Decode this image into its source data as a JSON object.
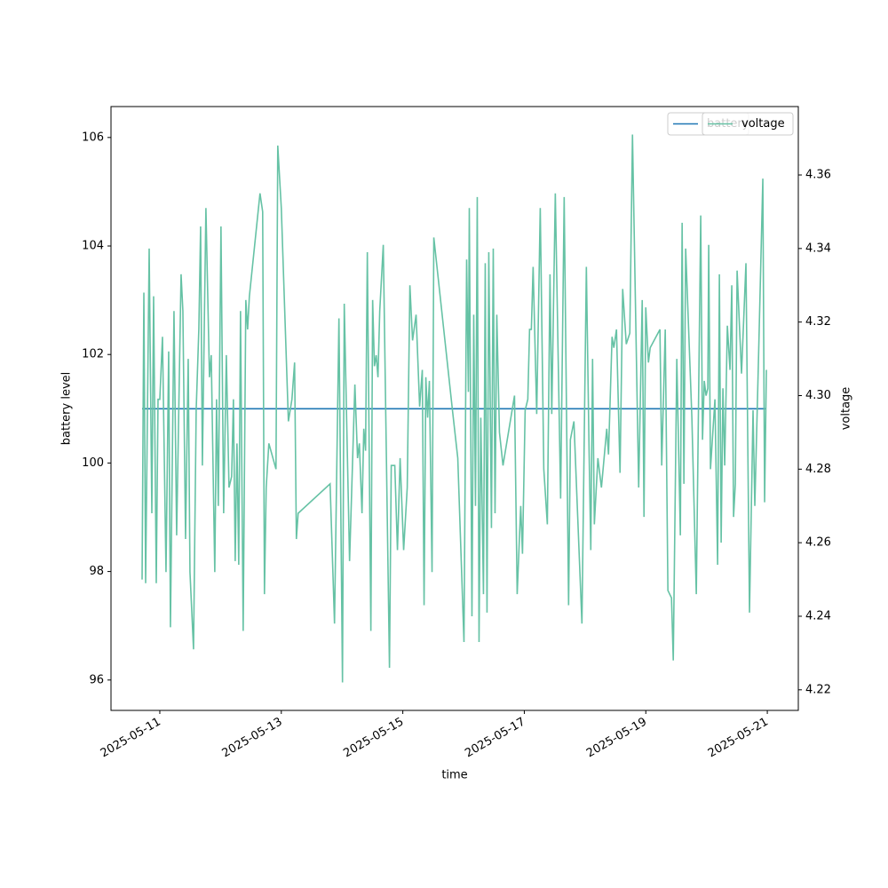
{
  "chart_data": {
    "type": "line",
    "xlabel": "time",
    "ylabel": "battery level",
    "y2label": "voltage",
    "xlim": [
      "2025-05-10T04:43",
      "2025-05-21T12:15"
    ],
    "xticks": [
      "2025-05-11",
      "2025-05-13",
      "2025-05-15",
      "2025-05-17",
      "2025-05-19",
      "2025-05-21"
    ],
    "ylim": [
      95.44,
      106.57
    ],
    "yticks": [
      96,
      98,
      100,
      102,
      104,
      106
    ],
    "y2lim": [
      4.2144,
      4.3786
    ],
    "y2ticks": [
      4.22,
      4.24,
      4.26,
      4.28,
      {
        "value": 4.3,
        "label": "4.30"
      },
      4.32,
      4.34,
      4.36
    ],
    "legend": "upper right",
    "series": [
      {
        "name": "battery",
        "color": "#1f77b4",
        "axis": "y",
        "x": [
          "2025-05-10T17:00",
          "2025-05-20T23:38"
        ],
        "values": [
          101,
          101
        ]
      },
      {
        "name": "voltage",
        "color": "#66c2a5",
        "axis": "y2",
        "x": [
          "2025-05-10T17:00",
          "2025-05-10T17:42",
          "2025-05-10T18:24",
          "2025-05-10T19:48",
          "2025-05-10T20:51",
          "2025-05-10T21:33",
          "2025-05-10T22:36",
          "2025-05-10T23:18",
          "2025-05-11T00:00",
          "2025-05-11T01:03",
          "2025-05-11T02:27",
          "2025-05-11T03:30",
          "2025-05-11T04:12",
          "2025-05-11T05:36",
          "2025-05-11T06:39",
          "2025-05-11T08:24",
          "2025-05-11T09:07",
          "2025-05-11T10:10",
          "2025-05-11T11:13",
          "2025-05-11T11:55",
          "2025-05-11T13:19",
          "2025-05-11T14:22",
          "2025-05-11T15:25",
          "2025-05-11T16:07",
          "2025-05-11T16:49",
          "2025-05-11T18:13",
          "2025-05-11T19:37",
          "2025-05-11T20:19",
          "2025-05-11T21:43",
          "2025-05-11T22:25",
          "2025-05-11T23:07",
          "2025-05-12T00:10",
          "2025-05-12T01:13",
          "2025-05-12T02:17",
          "2025-05-12T03:20",
          "2025-05-12T04:23",
          "2025-05-12T05:05",
          "2025-05-12T05:47",
          "2025-05-12T06:29",
          "2025-05-12T07:11",
          "2025-05-12T07:53",
          "2025-05-12T08:56",
          "2025-05-12T09:59",
          "2025-05-12T10:41",
          "2025-05-12T11:23",
          "2025-05-12T15:35",
          "2025-05-12T16:38",
          "2025-05-12T17:20",
          "2025-05-12T18:02",
          "2025-05-12T19:05",
          "2025-05-12T21:54",
          "2025-05-12T22:36",
          "2025-05-13T00:00",
          "2025-05-13T02:48",
          "2025-05-13T04:12",
          "2025-05-13T05:15",
          "2025-05-13T05:57",
          "2025-05-13T06:39",
          "2025-05-13T19:16",
          "2025-05-13T21:01",
          "2025-05-13T22:46",
          "2025-05-14T00:10",
          "2025-05-14T00:52",
          "2025-05-14T02:58",
          "2025-05-14T05:04",
          "2025-05-14T06:07",
          "2025-05-14T06:50",
          "2025-05-14T07:53",
          "2025-05-14T08:35",
          "2025-05-14T09:17",
          "2025-05-14T09:59",
          "2025-05-14T11:23",
          "2025-05-14T12:05",
          "2025-05-14T12:47",
          "2025-05-14T13:29",
          "2025-05-14T14:11",
          "2025-05-14T14:53",
          "2025-05-14T16:17",
          "2025-05-14T18:44",
          "2025-05-14T19:26",
          "2025-05-14T20:50",
          "2025-05-14T21:53",
          "2025-05-14T22:56",
          "2025-05-15T00:20",
          "2025-05-15T01:45",
          "2025-05-15T02:48",
          "2025-05-15T03:51",
          "2025-05-15T05:15",
          "2025-05-15T06:39",
          "2025-05-15T07:42",
          "2025-05-15T08:24",
          "2025-05-15T09:06",
          "2025-05-15T09:48",
          "2025-05-15T10:30",
          "2025-05-15T11:33",
          "2025-05-15T12:15",
          "2025-05-15T19:37",
          "2025-05-15T21:43",
          "2025-05-16T00:10",
          "2025-05-16T01:13",
          "2025-05-16T01:55",
          "2025-05-16T02:16",
          "2025-05-16T03:19",
          "2025-05-16T04:01",
          "2025-05-16T04:43",
          "2025-05-16T05:25",
          "2025-05-16T06:07",
          "2025-05-16T06:49",
          "2025-05-16T07:52",
          "2025-05-16T08:34",
          "2025-05-16T09:16",
          "2025-05-16T09:58",
          "2025-05-16T11:01",
          "2025-05-16T11:44",
          "2025-05-16T12:26",
          "2025-05-16T13:08",
          "2025-05-16T14:11",
          "2025-05-16T15:35",
          "2025-05-16T20:08",
          "2025-05-16T21:11",
          "2025-05-16T22:35",
          "2025-05-16T23:17",
          "2025-05-17T00:20",
          "2025-05-17T01:23",
          "2025-05-17T02:05",
          "2025-05-17T02:47",
          "2025-05-17T03:29",
          "2025-05-17T04:54",
          "2025-05-17T06:18",
          "2025-05-17T07:42",
          "2025-05-17T09:06",
          "2025-05-17T10:09",
          "2025-05-17T10:51",
          "2025-05-17T12:15",
          "2025-05-17T14:21",
          "2025-05-17T15:45",
          "2025-05-17T17:30",
          "2025-05-17T18:12",
          "2025-05-17T19:36",
          "2025-05-17T22:46",
          "2025-05-18T00:31",
          "2025-05-18T01:34",
          "2025-05-18T02:16",
          "2025-05-18T02:58",
          "2025-05-18T03:40",
          "2025-05-18T05:04",
          "2025-05-18T06:28",
          "2025-05-18T08:34",
          "2025-05-18T09:16",
          "2025-05-18T10:40",
          "2025-05-18T11:22",
          "2025-05-18T12:25",
          "2025-05-18T13:49",
          "2025-05-18T14:52",
          "2025-05-18T16:17",
          "2025-05-18T17:41",
          "2025-05-18T18:44",
          "2025-05-18T21:11",
          "2025-05-18T22:35",
          "2025-05-18T23:17",
          "2025-05-18T23:59",
          "2025-05-19T01:02",
          "2025-05-19T01:44",
          "2025-05-19T05:35",
          "2025-05-19T06:17",
          "2025-05-19T07:41",
          "2025-05-19T08:44",
          "2025-05-19T10:09",
          "2025-05-19T10:51",
          "2025-05-19T12:15",
          "2025-05-19T13:39",
          "2025-05-19T14:21",
          "2025-05-19T15:03",
          "2025-05-19T15:45",
          "2025-05-19T18:12",
          "2025-05-19T19:57",
          "2025-05-19T21:42",
          "2025-05-19T22:24",
          "2025-05-19T23:06",
          "2025-05-19T23:48",
          "2025-05-20T00:30",
          "2025-05-20T00:51",
          "2025-05-20T01:33",
          "2025-05-20T03:19",
          "2025-05-20T04:22",
          "2025-05-20T05:04",
          "2025-05-20T05:46",
          "2025-05-20T06:28",
          "2025-05-20T07:10",
          "2025-05-20T08:13",
          "2025-05-20T09:16",
          "2025-05-20T09:58",
          "2025-05-20T10:40",
          "2025-05-20T11:22",
          "2025-05-20T12:04",
          "2025-05-20T13:49",
          "2025-05-20T15:34",
          "2025-05-20T16:58",
          "2025-05-20T18:22",
          "2025-05-20T19:04",
          "2025-05-20T20:29",
          "2025-05-20T22:14",
          "2025-05-20T22:56",
          "2025-05-20T23:38"
        ],
        "values": [
          4.25,
          4.328,
          4.249,
          4.34,
          4.268,
          4.327,
          4.249,
          4.299,
          4.299,
          4.316,
          4.252,
          4.312,
          4.237,
          4.323,
          4.262,
          4.333,
          4.323,
          4.261,
          4.31,
          4.252,
          4.231,
          4.296,
          4.318,
          4.346,
          4.281,
          4.351,
          4.305,
          4.311,
          4.252,
          4.299,
          4.27,
          4.346,
          4.268,
          4.311,
          4.275,
          4.278,
          4.299,
          4.255,
          4.287,
          4.254,
          4.323,
          4.236,
          4.326,
          4.318,
          4.327,
          4.355,
          4.35,
          4.246,
          4.275,
          4.287,
          4.28,
          4.368,
          4.351,
          4.293,
          4.299,
          4.309,
          4.261,
          4.268,
          4.276,
          4.238,
          4.321,
          4.222,
          4.325,
          4.255,
          4.303,
          4.283,
          4.287,
          4.268,
          4.291,
          4.285,
          4.339,
          4.236,
          4.326,
          4.308,
          4.311,
          4.305,
          4.323,
          4.341,
          4.226,
          4.281,
          4.281,
          4.258,
          4.283,
          4.258,
          4.275,
          4.33,
          4.315,
          4.322,
          4.297,
          4.307,
          4.243,
          4.305,
          4.294,
          4.304,
          4.252,
          4.343,
          4.296,
          4.283,
          4.233,
          4.337,
          4.301,
          4.351,
          4.24,
          4.322,
          4.27,
          4.354,
          4.233,
          4.294,
          4.246,
          4.336,
          4.241,
          4.339,
          4.264,
          4.34,
          4.268,
          4.322,
          4.29,
          4.281,
          4.3,
          4.246,
          4.27,
          4.257,
          4.296,
          4.299,
          4.318,
          4.318,
          4.335,
          4.295,
          4.351,
          4.28,
          4.265,
          4.333,
          4.295,
          4.355,
          4.272,
          4.354,
          4.243,
          4.288,
          4.293,
          4.238,
          4.335,
          4.286,
          4.258,
          4.31,
          4.265,
          4.283,
          4.275,
          4.291,
          4.284,
          4.316,
          4.313,
          4.318,
          4.279,
          4.329,
          4.314,
          4.317,
          4.371,
          4.275,
          4.326,
          4.267,
          4.324,
          4.309,
          4.313,
          4.318,
          4.281,
          4.318,
          4.247,
          4.245,
          4.228,
          4.31,
          4.262,
          4.347,
          4.276,
          4.34,
          4.294,
          4.246,
          4.349,
          4.288,
          4.304,
          4.3,
          4.302,
          4.341,
          4.28,
          4.299,
          4.254,
          4.333,
          4.26,
          4.302,
          4.281,
          4.319,
          4.307,
          4.33,
          4.267,
          4.276,
          4.334,
          4.306,
          4.336,
          4.241,
          4.296,
          4.27,
          4.309,
          4.359,
          4.271,
          4.307
        ]
      }
    ]
  }
}
